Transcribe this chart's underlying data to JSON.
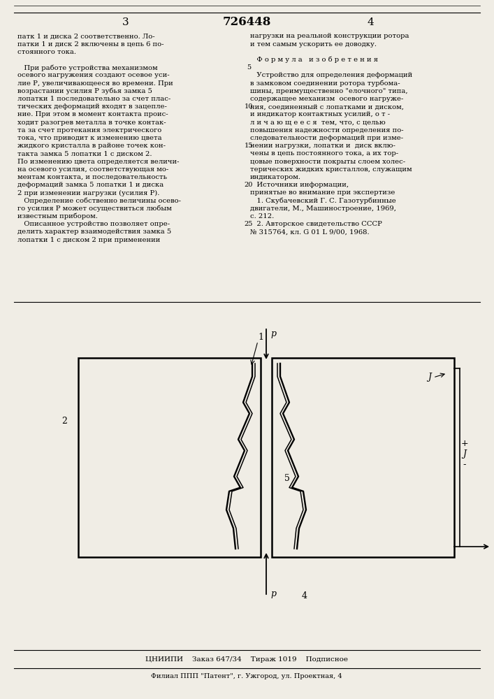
{
  "bg_color": "#f0ede5",
  "page_number_left": "3",
  "patent_number": "726448",
  "page_number_right": "4",
  "left_column_text": [
    "патк 1 и диска 2 соответственно. Ло-",
    "патки 1 и диск 2 включены в цепь 6 по-",
    "стоянного тока.",
    "",
    "   При работе устройства механизмом",
    "осевого нагружения создают осевое уси-",
    "лие Р, увеличивающееся во времени. При",
    "возрастании усилия Р зубья замка 5",
    "лопатки 1 последовательно за счет плас-",
    "тических деформаций входят в зацепле-",
    "ние. При этом в момент контакта проис-",
    "ходит разогрев металла в точке контак-",
    "та за счет протекания электрического",
    "тока, что приводит к изменению цвета",
    "жидкого кристалла в районе точек кон-",
    "такта замка 5 лопатки 1 с диском 2.",
    "По изменению цвета определяется величи-",
    "на осевого усилия, соответствующая мо-",
    "ментам контакта, и последовательность",
    "деформаций замка 5 лопатки 1 и диска",
    "2 при изменении нагрузки (усилия Р).",
    "   Определение собственно величины осево-",
    "го усилия Р может осуществиться любым",
    "известным прибором.",
    "   Описанное устройство позволяет опре-",
    "делить характер взаимодействия замка 5",
    "лопатки 1 с диском 2 при применении"
  ],
  "right_column_text": [
    "нагрузки на реальной конструкции ротора",
    "и тем самым ускорить ее доводку.",
    "",
    "   Ф о р м у л а   и з о б р е т е н и я",
    "",
    "   Устройство для определения деформаций",
    "в замковом соединении ротора турбома-",
    "шины, преимущественно \"елочного\" типа,",
    "содержащее механизм  осевого нагруже-",
    "ния, соединенный с лопатками и диском,",
    "и индикатор контактных усилий, о т -",
    "л и ч а ю щ е е с я  тем, что, с целью",
    "повышения надежности определения по-",
    "следовательности деформаций при изме-",
    "нении нагрузки, лопатки и  диск вклю-",
    "чены в цепь постоянного тока, а их тор-",
    "цовые поверхности покрыты слоем холес-",
    "терических жидких кристаллов, служащим",
    "индикатором.",
    "   Источники информации,",
    "принятые во внимание при экспертизе",
    "   1. Скубачевский Г. С. Газотурбинные",
    "двигатели, М., Машиностроение, 1969,",
    "с. 212.",
    "   2. Авторское свидетельство СССР",
    "№ 315764, кл. G 01 L 9/00, 1968."
  ],
  "footer_main": "ЦНИИПИ    Заказ 647/34    Тираж 1019    Подписное",
  "footer_sub": "Филиал ППП \"Патент\", г. Ужгород, ул. Проектная, 4"
}
